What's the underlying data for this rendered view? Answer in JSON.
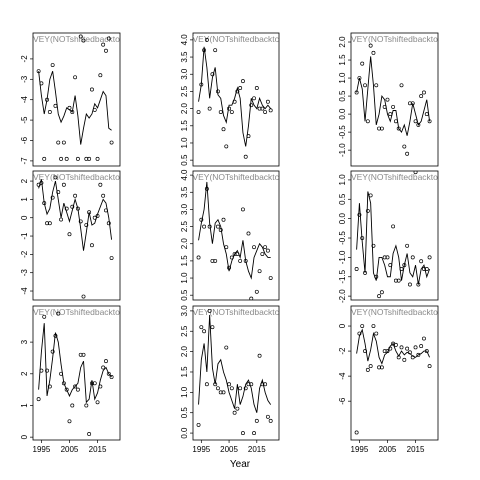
{
  "x_label": "Year",
  "chart_data": [
    {
      "type": "scatter",
      "title": "RVEY(NOTshiftedbacktoD",
      "x": [
        1994,
        1995,
        1996,
        1997,
        1998,
        1999,
        2000,
        2001,
        2002,
        2003,
        2004,
        2005,
        2006,
        2007,
        2008,
        2009,
        2010,
        2011,
        2012,
        2013,
        2014,
        2015,
        2016,
        2017,
        2018,
        2019,
        2020
      ],
      "xlim": [
        1992,
        2023
      ],
      "ylim": [
        -7.25,
        -0.73
      ],
      "yticks": [
        -7,
        -6,
        -5,
        -4,
        -3,
        -2
      ],
      "series": [
        {
          "mode": "markers",
          "color": "#000000",
          "values": [
            -2.6,
            -3.2,
            -6.9,
            -4.0,
            -4.6,
            -2.3,
            -4.3,
            -6.1,
            -6.9,
            -6.1,
            -6.9,
            -4.4,
            -4.6,
            -2.9,
            -6.9,
            -0.9,
            -1.1,
            -6.9,
            -6.9,
            -3.5,
            -4.5,
            -6.9,
            -2.8,
            -1.3,
            -1.6,
            -1.0,
            -6.1
          ]
        },
        {
          "mode": "lines",
          "color": "#000000",
          "values": [
            -2.6,
            -3.8,
            -4.7,
            -4.0,
            -3.0,
            -2.6,
            -3.6,
            -4.7,
            -5.1,
            -4.8,
            -4.4,
            -4.5,
            -4.6,
            -3.8,
            -4.8,
            -6.2,
            -5.4,
            -4.7,
            -4.9,
            -4.7,
            -4.2,
            -4.4,
            -4.0,
            -3.6,
            -3.8,
            -5.4,
            -5.5
          ]
        }
      ]
    },
    {
      "type": "scatter",
      "title": "RVEY(NOTshiftedbacktoD",
      "x": [
        1994,
        1995,
        1996,
        1997,
        1998,
        1999,
        2000,
        2001,
        2002,
        2003,
        2004,
        2005,
        2006,
        2007,
        2008,
        2009,
        2010,
        2011,
        2012,
        2013,
        2014,
        2015,
        2016,
        2017,
        2018,
        2019,
        2020
      ],
      "xlim": [
        1992,
        2023
      ],
      "ylim": [
        0.33,
        4.2
      ],
      "yticks": [
        0.5,
        {
          "value": 1,
          "label": "1.0"
        },
        1.5,
        {
          "value": 2,
          "label": "2.0"
        },
        2.5,
        {
          "value": 3,
          "label": "3.0"
        },
        3.5,
        {
          "value": 4,
          "label": "4.0"
        }
      ],
      "series": [
        {
          "mode": "markers",
          "color": "#000000",
          "values": [
            1.9,
            2.7,
            3.7,
            4.0,
            2.0,
            3.0,
            3.7,
            2.5,
            1.9,
            1.4,
            0.9,
            2.0,
            1.9,
            2.2,
            2.5,
            2.6,
            2.8,
            0.6,
            1.2,
            2.1,
            2.3,
            2.6,
            2.0,
            2.0,
            1.9,
            2.2,
            1.95
          ]
        },
        {
          "mode": "lines",
          "color": "#000000",
          "values": [
            2.2,
            2.7,
            3.8,
            3.2,
            2.3,
            2.9,
            3.2,
            2.4,
            2.3,
            1.8,
            1.6,
            2.1,
            2.1,
            2.3,
            2.6,
            2.3,
            1.3,
            0.9,
            1.5,
            2.3,
            2.1,
            2.0,
            2.3,
            2.1,
            2.0,
            2.1,
            2.0
          ]
        }
      ]
    },
    {
      "type": "scatter",
      "title": "RVEY(NOTshiftedbacktoD",
      "x": [
        1994,
        1995,
        1996,
        1997,
        1998,
        1999,
        2000,
        2001,
        2002,
        2003,
        2004,
        2005,
        2006,
        2007,
        2008,
        2009,
        2010,
        2011,
        2012,
        2013,
        2014,
        2015,
        2016,
        2017,
        2018,
        2019,
        2020
      ],
      "xlim": [
        1992,
        2023
      ],
      "ylim": [
        -1.44,
        2.25
      ],
      "yticks": [
        {
          "value": -1,
          "label": "-1.0"
        },
        -0.5,
        {
          "value": 0,
          "label": "0.0"
        },
        0.5,
        {
          "value": 1,
          "label": "1.0"
        },
        1.5,
        {
          "value": 2,
          "label": "2.0"
        }
      ],
      "series": [
        {
          "mode": "markers",
          "color": "#000000",
          "values": [
            0.6,
            1.0,
            1.4,
            0.8,
            -0.2,
            1.9,
            1.7,
            0.8,
            -0.4,
            -0.4,
            0.2,
            0.4,
            0.0,
            0.2,
            -0.2,
            -0.4,
            0.8,
            -0.9,
            -1.1,
            0.3,
            0.3,
            -0.2,
            -0.3,
            0.5,
            0.6,
            0.0,
            -0.2
          ]
        },
        {
          "mode": "lines",
          "color": "#000000",
          "values": [
            0.6,
            1.0,
            0.7,
            -0.2,
            0.7,
            1.6,
            0.8,
            -0.3,
            0.0,
            0.5,
            0.4,
            0.0,
            -0.2,
            0.1,
            0.1,
            -0.4,
            -0.5,
            -0.3,
            -0.6,
            -0.2,
            0.3,
            0.0,
            -0.3,
            -0.2,
            0.1,
            0.4,
            -0.2
          ]
        }
      ]
    },
    {
      "type": "scatter",
      "title": "RVEY(NOTshiftedbacktoD",
      "x": [
        1994,
        1995,
        1996,
        1997,
        1998,
        1999,
        2000,
        2001,
        2002,
        2003,
        2004,
        2005,
        2006,
        2007,
        2008,
        2009,
        2010,
        2011,
        2012,
        2013,
        2014,
        2015,
        2016,
        2017,
        2018,
        2019,
        2020
      ],
      "xlim": [
        1992,
        2023
      ],
      "ylim": [
        -4.49,
        2.55
      ],
      "yticks": [
        -4,
        -3,
        -2,
        -1,
        0,
        1,
        2
      ],
      "series": [
        {
          "mode": "markers",
          "color": "#000000",
          "values": [
            1.8,
            1.9,
            0.8,
            -0.3,
            -0.3,
            1.1,
            2.2,
            1.4,
            -0.1,
            1.8,
            0.5,
            -0.9,
            0.6,
            1.2,
            0.5,
            -0.2,
            -4.3,
            -0.4,
            0.3,
            -1.5,
            0.0,
            0.1,
            1.8,
            1.2,
            0.4,
            -0.3,
            -2.2
          ]
        },
        {
          "mode": "lines",
          "color": "#000000",
          "values": [
            1.6,
            2.1,
            0.8,
            0.2,
            0.5,
            1.4,
            2.0,
            1.0,
            0.0,
            0.8,
            0.3,
            -0.2,
            0.4,
            1.0,
            0.5,
            -0.6,
            -1.8,
            -0.8,
            0.3,
            -0.4,
            -0.3,
            0.2,
            0.6,
            1.0,
            0.8,
            0.0,
            -1.2
          ]
        }
      ]
    },
    {
      "type": "scatter",
      "title": "RVEY(NOTshiftedbacktoD",
      "x": [
        1994,
        1995,
        1996,
        1997,
        1998,
        1999,
        2000,
        2001,
        2002,
        2003,
        2004,
        2005,
        2006,
        2007,
        2008,
        2009,
        2010,
        2011,
        2012,
        2013,
        2014,
        2015,
        2016,
        2017,
        2018,
        2019,
        2020
      ],
      "xlim": [
        1992,
        2023
      ],
      "ylim": [
        0.36,
        4.12
      ],
      "yticks": [
        0.5,
        {
          "value": 1,
          "label": "1.0"
        },
        1.5,
        {
          "value": 2,
          "label": "2.0"
        },
        2.5,
        {
          "value": 3,
          "label": "3.0"
        },
        3.5,
        {
          "value": 4,
          "label": "4.0"
        }
      ],
      "series": [
        {
          "mode": "markers",
          "color": "#000000",
          "values": [
            1.6,
            2.7,
            2.5,
            3.6,
            2.5,
            1.5,
            1.5,
            2.5,
            2.4,
            2.7,
            1.9,
            1.3,
            1.6,
            1.7,
            1.7,
            1.5,
            3.0,
            1.5,
            2.3,
            0.4,
            1.9,
            0.6,
            1.2,
            1.7,
            1.9,
            1.8,
            1.0
          ]
        },
        {
          "mode": "lines",
          "color": "#000000",
          "values": [
            2.1,
            2.6,
            3.0,
            3.8,
            2.6,
            2.0,
            2.6,
            2.7,
            2.5,
            2.0,
            1.7,
            1.2,
            1.5,
            1.7,
            1.8,
            1.6,
            2.1,
            1.5,
            1.2,
            1.0,
            1.6,
            1.8,
            2.0,
            1.9,
            1.7,
            1.6,
            1.6
          ]
        }
      ]
    },
    {
      "type": "scatter",
      "title": "RVEY(NOTshiftedbacktoD",
      "x": [
        1994,
        1995,
        1996,
        1997,
        1998,
        1999,
        2000,
        2001,
        2002,
        2003,
        2004,
        2005,
        2006,
        2007,
        2008,
        2009,
        2010,
        2011,
        2012,
        2013,
        2014,
        2015,
        2016,
        2017,
        2018,
        2019,
        2020
      ],
      "xlim": [
        1992,
        2023
      ],
      "ylim": [
        -2.1,
        1.23
      ],
      "yticks": [
        {
          "value": -2,
          "label": "-2.0"
        },
        -1.5,
        {
          "value": -1,
          "label": "-1.0"
        },
        -0.5,
        {
          "value": 0,
          "label": "0.0"
        },
        0.5,
        {
          "value": 1,
          "label": "1.0"
        }
      ],
      "series": [
        {
          "mode": "markers",
          "color": "#000000",
          "values": [
            -1.3,
            0.1,
            -0.5,
            -1.4,
            0.2,
            0.6,
            -0.7,
            -1.5,
            -2.0,
            -1.9,
            -1.0,
            -1.0,
            -1.2,
            -0.2,
            -1.6,
            -1.6,
            -1.3,
            -1.2,
            -0.7,
            -1.7,
            -1.0,
            1.2,
            -1.7,
            -1.1,
            -1.3,
            -1.3,
            -1.0
          ]
        },
        {
          "mode": "lines",
          "color": "#000000",
          "values": [
            -0.8,
            0.4,
            -0.6,
            -1.4,
            0.7,
            0.4,
            -1.4,
            -1.6,
            -1.0,
            -1.0,
            -1.2,
            -1.5,
            -1.5,
            -0.9,
            -0.7,
            -1.0,
            -1.6,
            -1.2,
            -0.9,
            -1.4,
            -1.5,
            -1.2,
            -1.7,
            -1.3,
            -1.2,
            -1.5,
            -1.3
          ]
        }
      ]
    },
    {
      "type": "scatter",
      "title": "RVEY(NOTshiftedbacktoD",
      "x": [
        1994,
        1995,
        1996,
        1997,
        1998,
        1999,
        2000,
        2001,
        2002,
        2003,
        2004,
        2005,
        2006,
        2007,
        2008,
        2009,
        2010,
        2011,
        2012,
        2013,
        2014,
        2015,
        2016,
        2017,
        2018,
        2019,
        2020
      ],
      "xlim": [
        1992,
        2023
      ],
      "xticks": [
        1995,
        2005,
        2015
      ],
      "ylim": [
        -0.09,
        4.14
      ],
      "yticks": [
        0,
        1,
        2,
        3
      ],
      "series": [
        {
          "mode": "markers",
          "color": "#000000",
          "values": [
            1.2,
            2.1,
            3.8,
            2.1,
            1.6,
            2.7,
            3.2,
            3.9,
            2.0,
            1.7,
            1.5,
            0.5,
            1.0,
            1.6,
            1.5,
            2.6,
            2.6,
            1.0,
            0.1,
            1.7,
            1.7,
            1.1,
            1.6,
            2.2,
            2.4,
            2.0,
            1.9
          ]
        },
        {
          "mode": "lines",
          "color": "#000000",
          "values": [
            1.5,
            2.7,
            3.6,
            1.3,
            1.8,
            2.5,
            3.3,
            3.0,
            2.3,
            1.7,
            1.5,
            1.3,
            1.5,
            1.6,
            1.7,
            2.2,
            2.4,
            1.1,
            1.2,
            1.8,
            1.2,
            1.4,
            1.8,
            2.1,
            2.2,
            2.0,
            1.9
          ]
        }
      ]
    },
    {
      "type": "scatter",
      "title": "RVEY(NOTshiftedbacktoD",
      "x": [
        1994,
        1995,
        1996,
        1997,
        1998,
        1999,
        2000,
        2001,
        2002,
        2003,
        2004,
        2005,
        2006,
        2007,
        2008,
        2009,
        2010,
        2011,
        2012,
        2013,
        2014,
        2015,
        2016,
        2017,
        2018,
        2019,
        2020
      ],
      "xlim": [
        1992,
        2023
      ],
      "xticks": [
        1995,
        2005,
        2015
      ],
      "ylim": [
        -0.17,
        3.12
      ],
      "yticks": [
        {
          "value": 0,
          "label": "0.0"
        },
        0.5,
        {
          "value": 1,
          "label": "1.0"
        },
        1.5,
        {
          "value": 2,
          "label": "2.0"
        },
        2.5,
        {
          "value": 3,
          "label": "3.0"
        }
      ],
      "series": [
        {
          "mode": "markers",
          "color": "#000000",
          "values": [
            0.2,
            2.6,
            2.5,
            1.2,
            3.0,
            2.6,
            1.2,
            1.1,
            1.0,
            1.0,
            2.1,
            1.2,
            1.1,
            0.5,
            0.6,
            1.1,
            0.0,
            1.1,
            1.2,
            1.2,
            0.0,
            0.3,
            1.9,
            1.2,
            1.2,
            0.4,
            0.3
          ]
        },
        {
          "mode": "lines",
          "color": "#000000",
          "values": [
            0.7,
            1.8,
            2.2,
            1.5,
            2.9,
            1.6,
            1.2,
            1.7,
            1.8,
            1.5,
            1.3,
            1.0,
            0.8,
            0.6,
            1.2,
            0.7,
            0.9,
            1.2,
            1.3,
            1.1,
            0.7,
            0.5,
            1.1,
            1.3,
            1.0,
            0.8,
            0.7
          ]
        }
      ]
    },
    {
      "type": "scatter",
      "title": "RVEY(NOTshiftedbacktoD",
      "x": [
        1994,
        1995,
        1996,
        1997,
        1998,
        1999,
        2000,
        2001,
        2002,
        2003,
        2004,
        2005,
        2006,
        2007,
        2008,
        2009,
        2010,
        2011,
        2012,
        2013,
        2014,
        2015,
        2016,
        2017,
        2018,
        2019,
        2020
      ],
      "xlim": [
        1992,
        2023
      ],
      "xticks": [
        1995,
        2005,
        2015
      ],
      "ylim": [
        -9.1,
        1.6
      ],
      "yticks": [
        -6,
        -4,
        -2,
        0
      ],
      "series": [
        {
          "mode": "markers",
          "color": "#000000",
          "values": [
            -8.5,
            -0.6,
            0.0,
            -2.0,
            -3.5,
            -3.2,
            0.0,
            -0.6,
            -3.3,
            -3.3,
            -2.0,
            -2.0,
            -1.8,
            -1.4,
            -1.5,
            -2.5,
            -1.7,
            -2.7,
            -1.8,
            -2.1,
            -2.5,
            -1.7,
            -2.3,
            -1.6,
            -1.0,
            -2.0,
            -3.2
          ]
        },
        {
          "mode": "lines",
          "color": "#000000",
          "values": [
            -2.2,
            -0.8,
            -0.3,
            -1.4,
            -2.8,
            -1.9,
            -0.6,
            -1.2,
            -2.5,
            -3.0,
            -2.3,
            -2.1,
            -1.6,
            -1.4,
            -2.0,
            -2.4,
            -2.0,
            -2.3,
            -2.1,
            -2.2,
            -2.4,
            -2.5,
            -2.3,
            -2.2,
            -2.0,
            -2.0,
            -2.5
          ]
        }
      ]
    }
  ]
}
